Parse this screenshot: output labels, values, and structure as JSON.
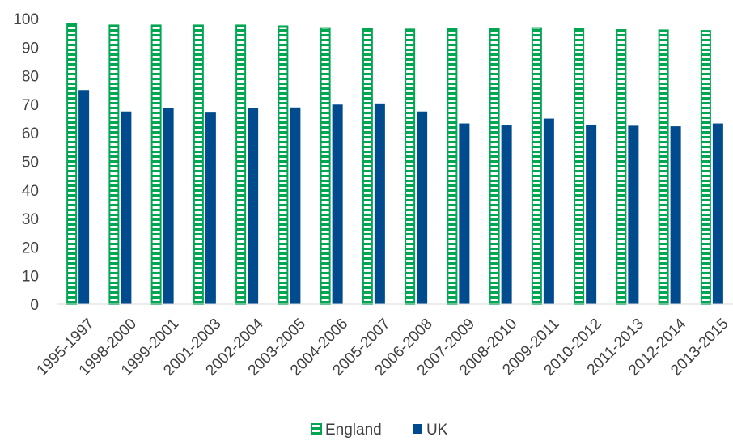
{
  "chart_data": {
    "type": "bar",
    "categories": [
      "1995-1997",
      "1998-2000",
      "1999-2001",
      "2001-2003",
      "2002-2004",
      "2003-2005",
      "2004-2006",
      "2005-2007",
      "2006-2008",
      "2007-2009",
      "2008-2010",
      "2009-2011",
      "2010-2012",
      "2011-2013",
      "2012-2014",
      "2013-2015"
    ],
    "series": [
      {
        "name": "England",
        "color": "#00a651",
        "pattern": "horizontal-stripes",
        "values": [
          98.5,
          97.9,
          97.9,
          97.9,
          97.9,
          97.6,
          97.0,
          96.8,
          96.5,
          96.6,
          96.6,
          97.0,
          96.6,
          96.3,
          96.2,
          96.0
        ]
      },
      {
        "name": "UK",
        "color": "#004b8d",
        "pattern": "solid",
        "values": [
          75.0,
          67.5,
          68.8,
          67.1,
          68.7,
          68.9,
          69.9,
          70.3,
          67.5,
          63.3,
          62.6,
          65.0,
          62.9,
          62.5,
          62.3,
          63.3
        ]
      }
    ],
    "ylim": [
      0,
      100
    ],
    "yticks": [
      0,
      10,
      20,
      30,
      40,
      50,
      60,
      70,
      80,
      90,
      100
    ],
    "grid": false,
    "legend_position": "bottom",
    "title": "",
    "xlabel": "",
    "ylabel": ""
  }
}
